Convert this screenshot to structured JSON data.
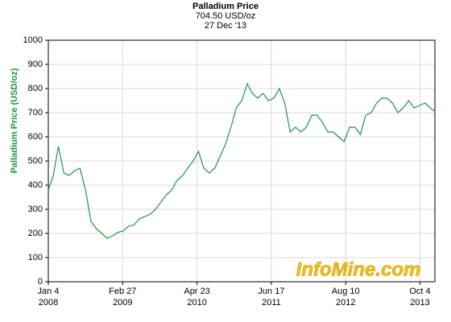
{
  "chart_data": {
    "type": "line",
    "title": "Palladium Price",
    "subtitle": [
      "704.50 USD/oz",
      "27 Dec '13"
    ],
    "y_label": "Palladium Price (USD/oz)",
    "watermark": "InfoMine.com",
    "grid": true,
    "xlim": [
      "2008-01-04",
      "2013-12-27"
    ],
    "ylim": [
      0,
      1000
    ],
    "yticks": [
      0,
      100,
      200,
      300,
      400,
      500,
      600,
      700,
      800,
      900,
      1000
    ],
    "xticks": [
      {
        "value": "2008-01-04",
        "label": [
          "Jan 4",
          "2008"
        ]
      },
      {
        "value": "2009-02-27",
        "label": [
          "Feb 27",
          "2009"
        ]
      },
      {
        "value": "2010-04-23",
        "label": [
          "Apr 23",
          "2010"
        ]
      },
      {
        "value": "2011-06-17",
        "label": [
          "Jun 17",
          "2011"
        ]
      },
      {
        "value": "2012-08-10",
        "label": [
          "Aug 10",
          "2012"
        ]
      },
      {
        "value": "2013-10-04",
        "label": [
          "Oct 4",
          "2013"
        ]
      }
    ],
    "x": [
      "2008-01-04",
      "2008-02-01",
      "2008-03-01",
      "2008-04-01",
      "2008-05-01",
      "2008-06-01",
      "2008-07-01",
      "2008-08-01",
      "2008-09-01",
      "2008-10-01",
      "2008-11-01",
      "2008-12-01",
      "2009-01-01",
      "2009-02-01",
      "2009-03-01",
      "2009-04-01",
      "2009-05-01",
      "2009-06-01",
      "2009-07-01",
      "2009-08-01",
      "2009-09-01",
      "2009-10-01",
      "2009-11-01",
      "2009-12-01",
      "2010-01-01",
      "2010-02-01",
      "2010-03-01",
      "2010-04-01",
      "2010-05-01",
      "2010-06-01",
      "2010-07-01",
      "2010-08-01",
      "2010-09-01",
      "2010-10-01",
      "2010-11-01",
      "2010-12-01",
      "2011-01-01",
      "2011-02-01",
      "2011-03-01",
      "2011-04-01",
      "2011-05-01",
      "2011-06-01",
      "2011-07-01",
      "2011-08-01",
      "2011-09-01",
      "2011-10-01",
      "2011-11-01",
      "2011-12-01",
      "2012-01-01",
      "2012-02-01",
      "2012-03-01",
      "2012-04-01",
      "2012-05-01",
      "2012-06-01",
      "2012-07-01",
      "2012-08-01",
      "2012-09-01",
      "2012-10-01",
      "2012-11-01",
      "2012-12-01",
      "2013-01-01",
      "2013-02-01",
      "2013-03-01",
      "2013-04-01",
      "2013-05-01",
      "2013-06-01",
      "2013-07-01",
      "2013-08-01",
      "2013-09-01",
      "2013-10-01",
      "2013-11-01",
      "2013-12-01",
      "2013-12-27"
    ],
    "series": [
      {
        "name": "Palladium",
        "color": "#1f9447",
        "values": [
          380,
          440,
          560,
          450,
          440,
          460,
          470,
          380,
          250,
          220,
          200,
          180,
          190,
          205,
          210,
          230,
          235,
          260,
          270,
          280,
          300,
          330,
          360,
          380,
          420,
          440,
          470,
          500,
          540,
          470,
          450,
          470,
          520,
          570,
          640,
          720,
          750,
          820,
          780,
          760,
          780,
          750,
          760,
          800,
          740,
          620,
          640,
          620,
          640,
          690,
          690,
          660,
          620,
          620,
          600,
          580,
          640,
          640,
          610,
          690,
          700,
          740,
          760,
          760,
          740,
          700,
          720,
          750,
          720,
          730,
          740,
          720,
          704.5
        ]
      }
    ]
  }
}
